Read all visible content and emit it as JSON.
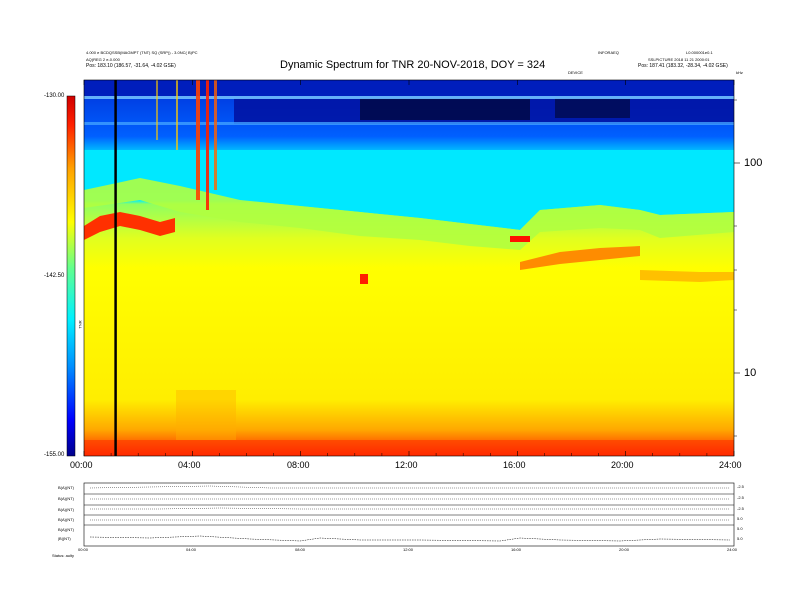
{
  "chart_data": {
    "type": "heatmap",
    "title": "Dynamic Spectrum for TNR 20-NOV-2018, DOY = 324",
    "x_ticks": [
      "00:00",
      "04:00",
      "08:00",
      "12:00",
      "16:00",
      "20:00",
      "24:00"
    ],
    "y_right_ticks": [
      "100",
      "10"
    ],
    "y_scale": "log",
    "colorbar": {
      "ticks": [
        "-130.00",
        "-142.50",
        "-155.00"
      ],
      "range": [
        -155.0,
        -130.0
      ],
      "units": "TNR",
      "colors": [
        "#00008a",
        "#0000ff",
        "#0090ff",
        "#00f0ff",
        "#60ff90",
        "#ffff00",
        "#ffa000",
        "#ff2000",
        "#d00000"
      ]
    },
    "marker_time": "01:10",
    "grid": false,
    "header_left": [
      "4.000 e BCDQSSB(MAGMPT (TNT) SQ (SRP)) - 3.0NC( B)PC",
      "AQ(REG 2 e-0.000",
      "Pos:    183.10 (186.57, -31.64, -4.02 GSE)"
    ],
    "header_right": [
      "INFORAEQ",
      "L0.000001e0.1",
      "SSLPICTURE 2018 11 21 2000:01",
      "Pos:   187.41 (183.32, -28.34, -4.02 GSE)"
    ],
    "small_labels": {
      "center": "DEVICE",
      "right": "kHz"
    },
    "subpanel_labels": [
      "B(A)(NT)",
      "B(A)(NT)",
      "B(A)(NT)",
      "B(A)(NT)",
      "B(A)(NT)",
      "|B|(NT)"
    ],
    "subpanel_x_ticks": [
      "00:00",
      "04:00",
      "08:00",
      "12:00",
      "16:00",
      "20:00",
      "24:00"
    ],
    "subpanel_right_ticks": [
      "-2.5",
      "-2.5",
      "-2.5",
      "5.0",
      "5.0",
      "5.0"
    ],
    "footer_label": "Status:  aulty"
  }
}
